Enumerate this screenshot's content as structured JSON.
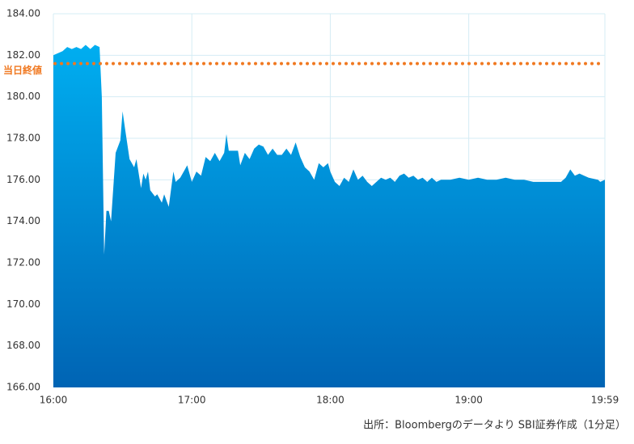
{
  "chart_data": {
    "type": "area",
    "x": [
      "16:00",
      "16:02",
      "16:04",
      "16:06",
      "16:08",
      "16:10",
      "16:12",
      "16:14",
      "16:16",
      "16:18",
      "16:20",
      "16:21",
      "16:22",
      "16:23",
      "16:24",
      "16:25",
      "16:27",
      "16:29",
      "16:30",
      "16:31",
      "16:33",
      "16:35",
      "16:36",
      "16:38",
      "16:39",
      "16:40",
      "16:41",
      "16:42",
      "16:44",
      "16:45",
      "16:47",
      "16:48",
      "16:50",
      "16:52",
      "16:53",
      "16:55",
      "16:57",
      "16:58",
      "17:00",
      "17:02",
      "17:04",
      "17:06",
      "17:08",
      "17:10",
      "17:12",
      "17:14",
      "17:15",
      "17:16",
      "17:18",
      "17:20",
      "17:21",
      "17:23",
      "17:25",
      "17:27",
      "17:29",
      "17:31",
      "17:33",
      "17:35",
      "17:37",
      "17:39",
      "17:41",
      "17:43",
      "17:45",
      "17:47",
      "17:49",
      "17:51",
      "17:53",
      "17:55",
      "17:57",
      "17:59",
      "18:00",
      "18:02",
      "18:04",
      "18:06",
      "18:08",
      "18:10",
      "18:12",
      "18:14",
      "18:16",
      "18:18",
      "18:20",
      "18:22",
      "18:24",
      "18:26",
      "18:28",
      "18:30",
      "18:32",
      "18:34",
      "18:36",
      "18:38",
      "18:40",
      "18:42",
      "18:44",
      "18:46",
      "18:48",
      "18:52",
      "18:56",
      "19:00",
      "19:04",
      "19:08",
      "19:12",
      "19:16",
      "19:20",
      "19:24",
      "19:28",
      "19:32",
      "19:36",
      "19:40",
      "19:42",
      "19:44",
      "19:46",
      "19:48",
      "19:50",
      "19:52",
      "19:56",
      "19:57",
      "19:59"
    ],
    "values": [
      182.0,
      182.1,
      182.2,
      182.4,
      182.3,
      182.4,
      182.3,
      182.5,
      182.3,
      182.5,
      182.4,
      180.0,
      172.4,
      174.5,
      174.5,
      174.0,
      177.3,
      177.9,
      179.3,
      178.5,
      177.0,
      176.6,
      177.0,
      175.6,
      176.3,
      176.0,
      176.4,
      175.5,
      175.2,
      175.3,
      174.9,
      175.3,
      174.7,
      176.4,
      175.9,
      176.1,
      176.5,
      176.7,
      175.9,
      176.4,
      176.2,
      177.1,
      176.9,
      177.3,
      176.9,
      177.3,
      178.2,
      177.4,
      177.4,
      177.4,
      176.7,
      177.3,
      177.0,
      177.5,
      177.7,
      177.6,
      177.2,
      177.5,
      177.2,
      177.2,
      177.5,
      177.2,
      177.8,
      177.1,
      176.6,
      176.4,
      176.0,
      176.8,
      176.6,
      176.8,
      176.4,
      175.9,
      175.7,
      176.1,
      175.9,
      176.5,
      176.0,
      176.2,
      175.9,
      175.7,
      175.9,
      176.1,
      176.0,
      176.1,
      175.9,
      176.2,
      176.3,
      176.1,
      176.2,
      176.0,
      176.1,
      175.9,
      176.1,
      175.9,
      176.0,
      176.0,
      176.1,
      176.0,
      176.1,
      176.0,
      176.0,
      176.1,
      176.0,
      176.0,
      175.9,
      175.9,
      175.9,
      175.9,
      176.1,
      176.5,
      176.2,
      176.3,
      176.2,
      176.1,
      176.0,
      175.9,
      176.0
    ],
    "color": "#00a8ec",
    "xlim": [
      "16:00",
      "19:59"
    ],
    "xticks": [
      "16:00",
      "17:00",
      "18:00",
      "19:00",
      "19:59"
    ],
    "ylim": [
      166,
      184
    ],
    "yticks": [
      {
        "value": 166,
        "label": "166.00"
      },
      {
        "value": 168,
        "label": "168.00"
      },
      {
        "value": 170,
        "label": "170.00"
      },
      {
        "value": 172,
        "label": "172.00"
      },
      {
        "value": 174,
        "label": "174.00"
      },
      {
        "value": 176,
        "label": "176.00"
      },
      {
        "value": 178,
        "label": "178.00"
      },
      {
        "value": 180,
        "label": "180.00"
      },
      {
        "value": 182,
        "label": "182.00"
      },
      {
        "value": 184,
        "label": "184.00"
      }
    ],
    "grid": true,
    "reference_line": {
      "value": 181.6,
      "label": "当日終値",
      "color": "#f07820"
    },
    "source": "出所：Bloombergのデータより SBI証券作成（1分足）"
  }
}
